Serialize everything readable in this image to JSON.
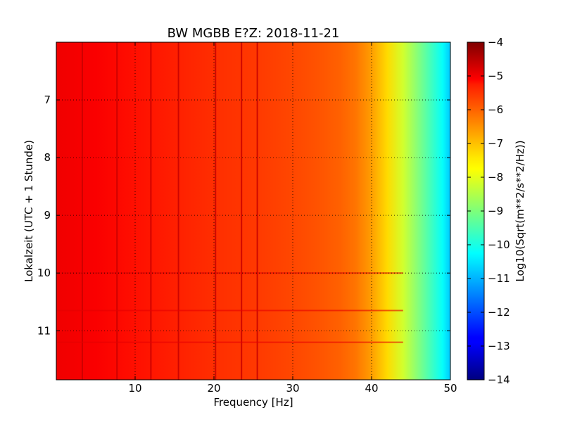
{
  "chart_data": {
    "type": "heatmap",
    "title": "BW MGBB E?Z: 2018-11-21",
    "xlabel": "Frequency [Hz]",
    "ylabel": "Lokalzeit (UTC + 1 Stunde)",
    "xlim": [
      0,
      50
    ],
    "ylim": [
      6.0,
      11.85
    ],
    "y_inverted": true,
    "grid": true,
    "xticks": [
      {
        "value": 10,
        "label": "10"
      },
      {
        "value": 20,
        "label": "20"
      },
      {
        "value": 30,
        "label": "30"
      },
      {
        "value": 40,
        "label": "40"
      },
      {
        "value": 50,
        "label": "50"
      }
    ],
    "yticks": [
      {
        "value": 7,
        "label": "7"
      },
      {
        "value": 8,
        "label": "8"
      },
      {
        "value": 9,
        "label": "9"
      },
      {
        "value": 10,
        "label": "10"
      },
      {
        "value": 11,
        "label": "11"
      }
    ],
    "colorbar": {
      "label": "Log10(Sqrt(m**2/s**2/Hz))",
      "range": [
        -14,
        -4
      ],
      "colormap": "jet",
      "ticks": [
        {
          "value": -4,
          "label": "−4"
        },
        {
          "value": -5,
          "label": "−5"
        },
        {
          "value": -6,
          "label": "−6"
        },
        {
          "value": -7,
          "label": "−7"
        },
        {
          "value": -8,
          "label": "−8"
        },
        {
          "value": -9,
          "label": "−9"
        },
        {
          "value": -10,
          "label": "−10"
        },
        {
          "value": -11,
          "label": "−11"
        },
        {
          "value": -12,
          "label": "−12"
        },
        {
          "value": -13,
          "label": "−13"
        },
        {
          "value": -14,
          "label": "−14"
        }
      ]
    },
    "spectrum_profile": {
      "frequency": [
        0,
        5,
        10,
        15,
        20,
        25,
        30,
        33,
        36,
        38,
        40,
        42,
        44,
        46,
        48,
        49,
        50
      ],
      "value": [
        -5.1,
        -5.2,
        -5.4,
        -5.55,
        -5.7,
        -5.8,
        -5.95,
        -6.05,
        -6.2,
        -6.4,
        -6.8,
        -7.4,
        -8.2,
        -9.0,
        -9.8,
        -10.2,
        -10.8
      ]
    },
    "spectral_lines_hz": [
      3.3,
      7.7,
      12.0,
      15.5,
      20.2,
      23.5,
      25.5
    ],
    "broadband_events_time": [
      10.0,
      10.65,
      11.2
    ]
  }
}
